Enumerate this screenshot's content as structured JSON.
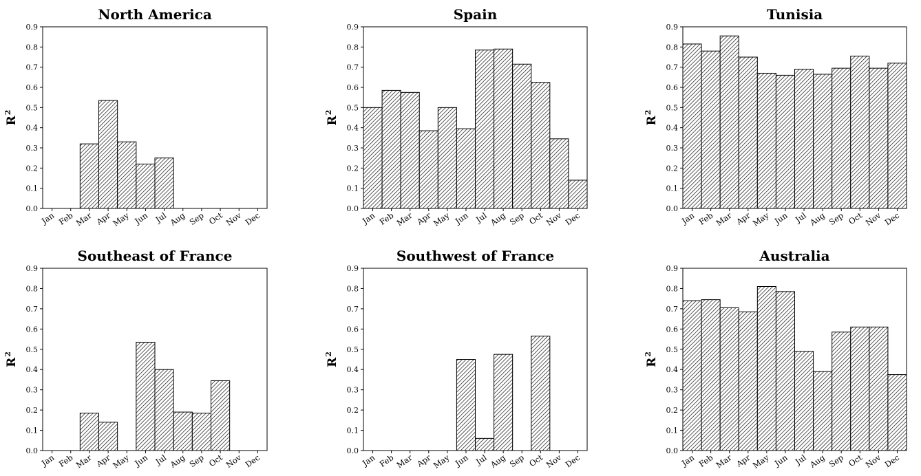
{
  "chart_data": [
    {
      "type": "bar",
      "title": "North America",
      "ylabel": "R",
      "ylabel_sup": "2",
      "ylim": [
        0,
        0.9
      ],
      "yticks": [
        "0.0",
        "0.1",
        "0.2",
        "0.3",
        "0.4",
        "0.5",
        "0.6",
        "0.7",
        "0.8",
        "0.9"
      ],
      "categories": [
        "Jan",
        "Feb",
        "Mar",
        "Apr",
        "May",
        "Jun",
        "Jul",
        "Aug",
        "Sep",
        "Oct",
        "Nov",
        "Dec"
      ],
      "values": [
        0,
        0,
        0.32,
        0.535,
        0.33,
        0.22,
        0.25,
        0,
        0,
        0,
        0,
        0
      ],
      "hatch": "diagonal"
    },
    {
      "type": "bar",
      "title": "Spain",
      "ylabel": "R",
      "ylabel_sup": "2",
      "ylim": [
        0,
        0.9
      ],
      "yticks": [
        "0.0",
        "0.1",
        "0.2",
        "0.3",
        "0.4",
        "0.5",
        "0.6",
        "0.7",
        "0.8",
        "0.9"
      ],
      "categories": [
        "Jan",
        "Feb",
        "Mar",
        "Apr",
        "May",
        "Jun",
        "Jul",
        "Aug",
        "Sep",
        "Oct",
        "Nov",
        "Dec"
      ],
      "values": [
        0.5,
        0.585,
        0.575,
        0.385,
        0.5,
        0.395,
        0.785,
        0.79,
        0.715,
        0.625,
        0.345,
        0.14
      ],
      "hatch": "diagonal"
    },
    {
      "type": "bar",
      "title": "Tunisia",
      "ylabel": "R",
      "ylabel_sup": "2",
      "ylim": [
        0,
        0.9
      ],
      "yticks": [
        "0.0",
        "0.1",
        "0.2",
        "0.3",
        "0.4",
        "0.5",
        "0.6",
        "0.7",
        "0.8",
        "0.9"
      ],
      "categories": [
        "Jan",
        "Feb",
        "Mar",
        "Apr",
        "May",
        "Jun",
        "Jul",
        "Aug",
        "Sep",
        "Oct",
        "Nov",
        "Dec"
      ],
      "values": [
        0.815,
        0.78,
        0.855,
        0.75,
        0.67,
        0.66,
        0.69,
        0.665,
        0.695,
        0.755,
        0.695,
        0.72
      ],
      "hatch": "diagonal"
    },
    {
      "type": "bar",
      "title": "Southeast of France",
      "ylabel": "R",
      "ylabel_sup": "2",
      "ylim": [
        0,
        0.9
      ],
      "yticks": [
        "0.0",
        "0.1",
        "0.2",
        "0.3",
        "0.4",
        "0.5",
        "0.6",
        "0.7",
        "0.8",
        "0.9"
      ],
      "categories": [
        "Jan",
        "Feb",
        "Mar",
        "Apr",
        "May",
        "Jun",
        "Jul",
        "Aug",
        "Sep",
        "Oct",
        "Nov",
        "Dec"
      ],
      "values": [
        0,
        0,
        0.185,
        0.14,
        0,
        0.535,
        0.4,
        0.19,
        0.185,
        0.345,
        0,
        0
      ],
      "hatch": "diagonal"
    },
    {
      "type": "bar",
      "title": "Southwest of France",
      "ylabel": "R",
      "ylabel_sup": "2",
      "ylim": [
        0,
        0.9
      ],
      "yticks": [
        "0.0",
        "0.1",
        "0.2",
        "0.3",
        "0.4",
        "0.5",
        "0.6",
        "0.7",
        "0.8",
        "0.9"
      ],
      "categories": [
        "Jan",
        "Feb",
        "Mar",
        "Apr",
        "May",
        "Jun",
        "Jul",
        "Aug",
        "Sep",
        "Oct",
        "Nov",
        "Dec"
      ],
      "values": [
        0,
        0,
        0,
        0,
        0,
        0.45,
        0.06,
        0.475,
        0,
        0.565,
        0,
        0
      ],
      "hatch": "diagonal"
    },
    {
      "type": "bar",
      "title": "Australia",
      "ylabel": "R",
      "ylabel_sup": "2",
      "ylim": [
        0,
        0.9
      ],
      "yticks": [
        "0.0",
        "0.1",
        "0.2",
        "0.3",
        "0.4",
        "0.5",
        "0.6",
        "0.7",
        "0.8",
        "0.9"
      ],
      "categories": [
        "Jan",
        "Feb",
        "Mar",
        "Apr",
        "May",
        "Jun",
        "Jul",
        "Aug",
        "Sep",
        "Oct",
        "Nov",
        "Dec"
      ],
      "values": [
        0.74,
        0.745,
        0.705,
        0.685,
        0.81,
        0.785,
        0.49,
        0.39,
        0.585,
        0.61,
        0.61,
        0.375
      ],
      "hatch": "diagonal"
    }
  ]
}
